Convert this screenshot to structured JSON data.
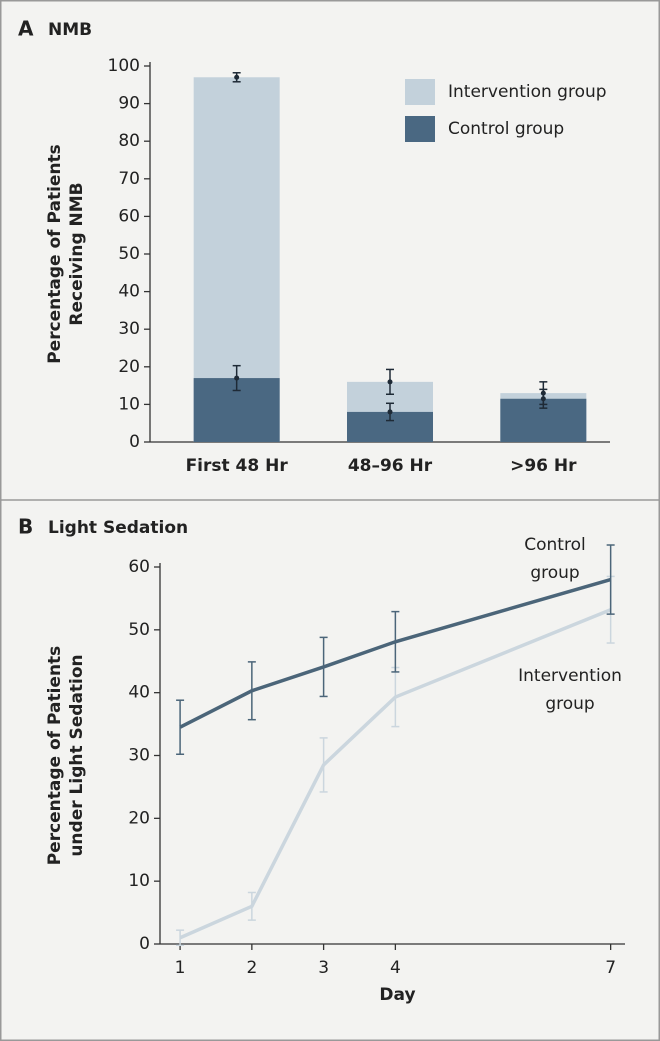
{
  "chart_data": [
    {
      "type": "bar",
      "panel": "A",
      "title": "NMB",
      "ylabel": [
        "Percentage of Patients",
        "Receiving NMB"
      ],
      "categories": [
        "First 48 Hr",
        "48–96 Hr",
        ">96 Hr"
      ],
      "series": [
        {
          "name": "Intervention group",
          "color": "#c3d1db",
          "values": [
            97,
            16,
            13
          ],
          "errors": [
            1.2,
            3.3,
            3
          ]
        },
        {
          "name": "Control group",
          "color": "#4a6882",
          "values": [
            17,
            8,
            11.5
          ],
          "errors": [
            3.3,
            2.3,
            2.5
          ]
        }
      ],
      "ylim": [
        0,
        100
      ],
      "yticks": [
        0,
        10,
        20,
        30,
        40,
        50,
        60,
        70,
        80,
        90,
        100
      ],
      "legend": "top-right"
    },
    {
      "type": "line",
      "panel": "B",
      "title": "Light Sedation",
      "ylabel": [
        "Percentage of Patients",
        "under Light Sedation"
      ],
      "xlabel": "Day",
      "x": [
        1,
        2,
        3,
        4,
        7
      ],
      "series": [
        {
          "name": [
            "Control",
            "group"
          ],
          "color": "#4b6579",
          "values": [
            34.5,
            40.3,
            44.1,
            48.1,
            58
          ],
          "errors": [
            4.3,
            4.6,
            4.7,
            4.8,
            5.5
          ]
        },
        {
          "name": [
            "Intervention",
            "group"
          ],
          "color": "#cbd6de",
          "values": [
            1,
            6,
            28.5,
            39.3,
            53.2
          ],
          "errors": [
            1.2,
            2.2,
            4.3,
            4.7,
            5.3
          ]
        }
      ],
      "xlim": [
        0.72,
        7.2
      ],
      "xticks": [
        1,
        2,
        3,
        4,
        7
      ],
      "ylim": [
        0,
        60
      ],
      "yticks": [
        0,
        10,
        20,
        30,
        40,
        50,
        60
      ]
    }
  ]
}
